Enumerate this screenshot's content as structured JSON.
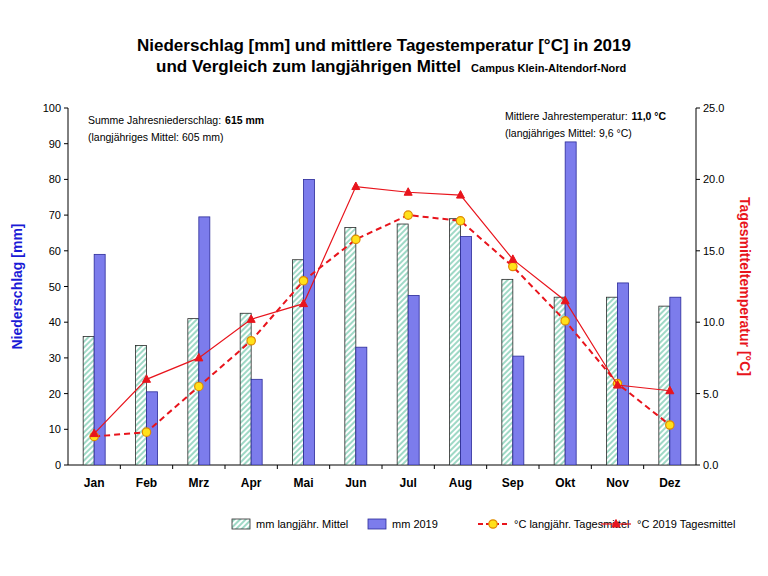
{
  "chart_data": {
    "type": "bar",
    "title": "Niederschlag [mm] und mittlere Tagestemperatur [°C] in 2019",
    "subtitle": "und Vergleich zum langjährigen Mittel",
    "annotations": [
      [
        "Campus Klein-Altendorf-Nord"
      ],
      [
        "Summe Jahresniederschlag:",
        "615 mm"
      ],
      [
        "(langjähriges Mittel: 605 mm)"
      ],
      [
        "Mittlere Jahrestemperatur:",
        "11,0 °C"
      ],
      [
        "(langjähriges Mittel: 9,6 °C)"
      ]
    ],
    "y_label": "Niederschlag [mm]",
    "y2_label": "Tagesmitteltemperatur [°C]",
    "categories": [
      "Jan",
      "Feb",
      "Mrz",
      "Apr",
      "Mai",
      "Jun",
      "Jul",
      "Aug",
      "Sep",
      "Okt",
      "Nov",
      "Dez"
    ],
    "series": [
      {
        "name": "mm langjähr. Mittel",
        "type": "bar",
        "color": "#9fd9c6",
        "values": [
          36,
          33.5,
          41,
          42.5,
          57.5,
          66.5,
          67.5,
          69,
          52,
          47,
          47,
          44.5
        ]
      },
      {
        "name": "mm 2019",
        "type": "bar",
        "color": "#7c7cec",
        "values": [
          59,
          20.5,
          69.5,
          24,
          80,
          33,
          47.5,
          64,
          30.5,
          90.5,
          51,
          47
        ]
      },
      {
        "name": "°C langjähr. Tagesmittel",
        "type": "line",
        "axis": "y2",
        "color": "#e8141c",
        "marker": "circle",
        "line_style": "dashed",
        "values": [
          2.0,
          2.3,
          5.5,
          8.7,
          12.9,
          15.8,
          17.5,
          17.1,
          13.9,
          10.1,
          5.7,
          2.8
        ]
      },
      {
        "name": "°C 2019 Tagesmittel",
        "type": "line",
        "axis": "y2",
        "color": "#e8141c",
        "marker": "triangle",
        "line_style": "solid",
        "values": [
          2.2,
          6.0,
          7.5,
          10.2,
          11.3,
          19.5,
          19.1,
          18.9,
          14.4,
          11.5,
          5.6,
          5.2
        ]
      }
    ],
    "ylim": [
      0,
      100
    ],
    "yticks": [
      0,
      10,
      20,
      30,
      40,
      50,
      60,
      70,
      80,
      90,
      100
    ],
    "y2lim": [
      0,
      25
    ],
    "y2ticks": [
      {
        "value": 0,
        "label": "0.0"
      },
      {
        "value": 5,
        "label": "5.0"
      },
      {
        "value": 10,
        "label": "10.0"
      },
      {
        "value": 15,
        "label": "15.0"
      },
      {
        "value": 20,
        "label": "20.0"
      },
      {
        "value": 25,
        "label": "25.0"
      }
    ],
    "grid": false,
    "legend": "bottom"
  }
}
